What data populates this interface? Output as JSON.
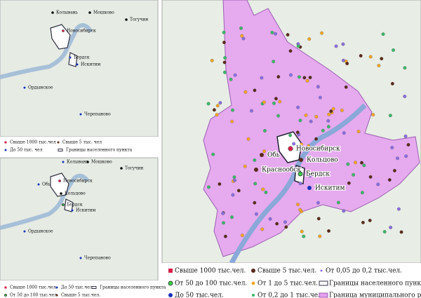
{
  "maps": [
    {
      "labels": [
        "Колывань",
        "Мошково",
        "Тогучин",
        "Новосибирск",
        "Бердск",
        "Искитим",
        "Ордынское",
        "Черепаново"
      ],
      "legend": [
        "Свыше 1000 тыс.чел",
        "Свыше 5 тыс. чел",
        "До 50 тыс. чел",
        "Границы населенного пункта"
      ]
    },
    {
      "labels": [
        "Колывань",
        "Мошково",
        "Тогучин",
        "Обь",
        "Новосибирск",
        "Кольцово",
        "Бердск",
        "Искитим",
        "Ордынское",
        "Черепаново"
      ],
      "legend": [
        "Свыше 1000 тыс.чел.",
        "До 50 тыс.чел.",
        "Границы населенного пункта",
        "От 50 до 100 тыс.чел.",
        "Свыше 5 тыс.чел."
      ]
    },
    {
      "labels": [
        "Новосибирск",
        "Обь",
        "Кольцово",
        "Краснообск",
        "Бердск",
        "Искитим"
      ],
      "legend": [
        "Свыше 1000 тыс.чел.",
        "Свыше 5 тыс.чел.",
        "От 0,05 до 0,2 тыс.чел.",
        "От 50 до 100 тыс.чел.",
        "От 1 до 5 тыс.чел.",
        "Границы населенного пункта",
        "До 50 тыс.чел.",
        "От 0,2 до 1 тыс.чел.",
        "Граница муниципального района"
      ]
    }
  ]
}
